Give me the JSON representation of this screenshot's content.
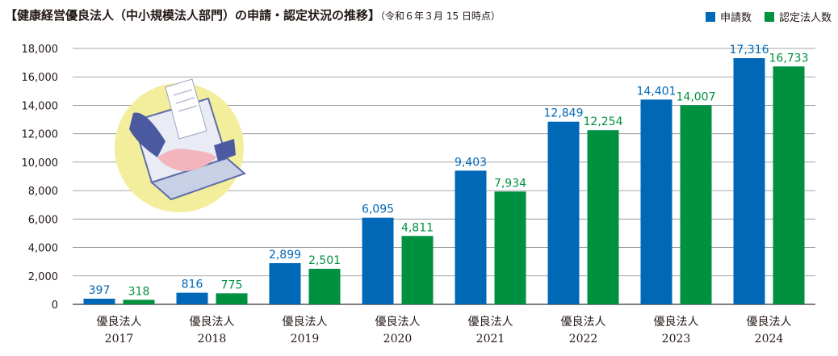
{
  "chart_data": {
    "type": "bar",
    "title": "【健康経営優良法人（中小規模法人部門）の申請・認定状況の推移】",
    "title_note": "（令和６年３月 15 日時点）",
    "category_prefix": "優良法人",
    "categories": [
      "2017",
      "2018",
      "2019",
      "2020",
      "2021",
      "2022",
      "2023",
      "2024"
    ],
    "series": [
      {
        "name": "申請数",
        "color": "#0068b7",
        "values": [
          397,
          816,
          2899,
          6095,
          9403,
          12849,
          14401,
          17316
        ],
        "labels": [
          "397",
          "816",
          "2,899",
          "6,095",
          "9,403",
          "12,849",
          "14,401",
          "17,316"
        ]
      },
      {
        "name": "認定法人数",
        "color": "#009140",
        "values": [
          318,
          775,
          2501,
          4811,
          7934,
          12254,
          14007,
          16733
        ],
        "labels": [
          "318",
          "775",
          "2,501",
          "4,811",
          "7,934",
          "12,254",
          "14,007",
          "16,733"
        ]
      }
    ],
    "yticks": [
      "0",
      "2,000",
      "4,000",
      "6,000",
      "8,000",
      "10,000",
      "12,000",
      "14,000",
      "16,000",
      "18,000"
    ],
    "ylim": [
      0,
      18000
    ],
    "grid": true,
    "legend_position": "top-right"
  }
}
